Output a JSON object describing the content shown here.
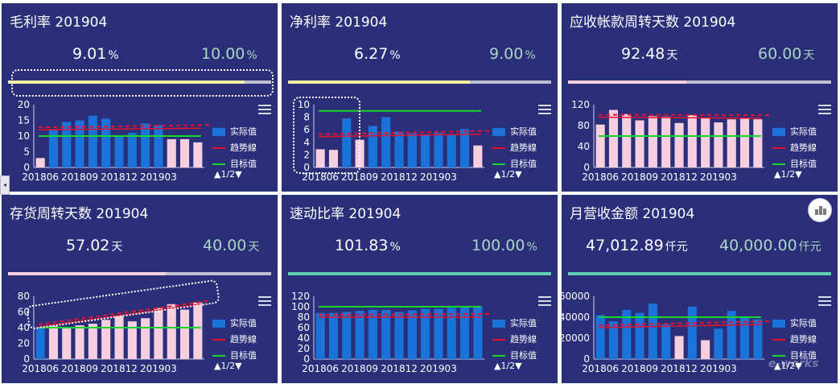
{
  "legend_labels": {
    "actual": "实际值",
    "trend": "趋势線",
    "target": "目标值",
    "pager": "▲1/2▼"
  },
  "colors": {
    "panel_bg": "#2b2f7a",
    "bar_met": "#1a73d9",
    "bar_unmet": "#f6cfe0",
    "trend": "#e8112d",
    "target": "#18d62a",
    "target_text": "#a9d6c2"
  },
  "ui": {
    "collapse_icon": "◂",
    "chart_toggle_icon": "bar-chart-icon",
    "menu_icon": "hamburger-icon"
  },
  "panels": [
    {
      "title": "毛利率 201904",
      "actual": "9.01",
      "actual_unit": "%",
      "target": "10.00",
      "target_unit": "%",
      "progress": 0.9,
      "progress_color": "#f3f1a0",
      "chart_data": {
        "type": "bar",
        "x_ticks": [
          "201806",
          "201809",
          "201812",
          "201903"
        ],
        "ylim": [
          0,
          20
        ],
        "yticks": [
          "0",
          "5",
          "10",
          "15",
          "20"
        ],
        "values": [
          3,
          12,
          14.5,
          15,
          16.5,
          15.5,
          10,
          11,
          14,
          13.5,
          9,
          9,
          8
        ],
        "met": [
          false,
          true,
          true,
          true,
          true,
          true,
          true,
          true,
          true,
          true,
          false,
          false,
          false
        ],
        "target": 10,
        "trend": [
          12,
          12.5
        ]
      }
    },
    {
      "title": "净利率 201904",
      "actual": "6.27",
      "actual_unit": "%",
      "target": "9.00",
      "target_unit": "%",
      "progress": 0.69,
      "progress_color": "#f3f1a0",
      "chart_data": {
        "type": "bar",
        "x_ticks": [
          "201806",
          "201809",
          "201812",
          "201903"
        ],
        "ylim": [
          0,
          10
        ],
        "yticks": [
          "0",
          "2",
          "4",
          "6",
          "8",
          "10"
        ],
        "values": [
          2.9,
          2.8,
          7.8,
          4.4,
          6.6,
          8.0,
          5.7,
          5.4,
          5.3,
          5.5,
          5.2,
          6.1,
          3.5
        ],
        "met": [
          false,
          false,
          true,
          false,
          true,
          true,
          true,
          true,
          true,
          true,
          true,
          true,
          false
        ],
        "target": 9,
        "trend": [
          4.9,
          5.3
        ]
      }
    },
    {
      "title": "应收帐款周转天数 201904",
      "actual": "92.48",
      "actual_unit": "天",
      "target": "60.00",
      "target_unit": "天",
      "progress": 0.45,
      "progress_color": "#f6cfe0",
      "chart_data": {
        "type": "bar",
        "x_ticks": [
          "201806",
          "201809",
          "201812",
          "201903"
        ],
        "ylim": [
          0,
          120
        ],
        "yticks": [
          "0",
          "40",
          "80",
          "120"
        ],
        "values": [
          82,
          110,
          102,
          90,
          98,
          97,
          85,
          100,
          94,
          86,
          92,
          93,
          92
        ],
        "met": [
          false,
          false,
          false,
          false,
          false,
          false,
          false,
          false,
          false,
          false,
          false,
          false,
          false
        ],
        "target": 60,
        "trend": [
          96,
          94
        ]
      }
    },
    {
      "title": "存货周转天数 201904",
      "actual": "57.02",
      "actual_unit": "天",
      "target": "40.00",
      "target_unit": "天",
      "progress": 0.6,
      "progress_color": "#f6cfe0",
      "chart_data": {
        "type": "bar",
        "x_ticks": [
          "201806",
          "201809",
          "201812",
          "201903"
        ],
        "ylim": [
          0,
          80
        ],
        "yticks": [
          "0",
          "20",
          "40",
          "60",
          "80"
        ],
        "values": [
          40,
          42,
          41,
          43,
          45,
          50,
          55,
          48,
          52,
          65,
          70,
          63,
          72
        ],
        "met": [
          true,
          false,
          false,
          false,
          false,
          false,
          false,
          false,
          false,
          false,
          false,
          false,
          false
        ],
        "target": 40,
        "trend": [
          41,
          70
        ]
      }
    },
    {
      "title": "速动比率 201904",
      "actual": "101.83",
      "actual_unit": "%",
      "target": "100.00",
      "target_unit": "%",
      "progress": 1.0,
      "progress_color": "#5ed0b4",
      "chart_data": {
        "type": "bar",
        "x_ticks": [
          "201806",
          "201809",
          "201812",
          "201903"
        ],
        "ylim": [
          0,
          120
        ],
        "yticks": [
          "0",
          "20",
          "40",
          "60",
          "80",
          "100",
          "120"
        ],
        "values": [
          88,
          88,
          90,
          92,
          94,
          94,
          90,
          93,
          96,
          96,
          98,
          99,
          101
        ],
        "met": [
          true,
          true,
          true,
          true,
          true,
          true,
          true,
          true,
          true,
          true,
          true,
          true,
          true
        ],
        "target": 100,
        "trend": [
          80,
          80
        ]
      }
    },
    {
      "title": "月营收金额 201904",
      "actual": "47,012.89",
      "actual_unit": "仟元",
      "target": "40,000.00",
      "target_unit": "仟元",
      "progress": 1.0,
      "progress_color": "#5ed0b4",
      "chart_data": {
        "type": "bar",
        "x_ticks": [
          "201806",
          "201809",
          "201812",
          "201903"
        ],
        "ylim": [
          0,
          60000
        ],
        "yticks": [
          "0",
          "20000",
          "40000",
          "60000"
        ],
        "values": [
          42000,
          36000,
          47000,
          44000,
          53000,
          33000,
          22000,
          50000,
          18000,
          29000,
          46000,
          40000,
          38000
        ],
        "met": [
          true,
          true,
          true,
          true,
          true,
          true,
          false,
          true,
          false,
          true,
          true,
          true,
          true
        ],
        "target": 40000,
        "trend": [
          30000,
          33000
        ]
      }
    }
  ]
}
